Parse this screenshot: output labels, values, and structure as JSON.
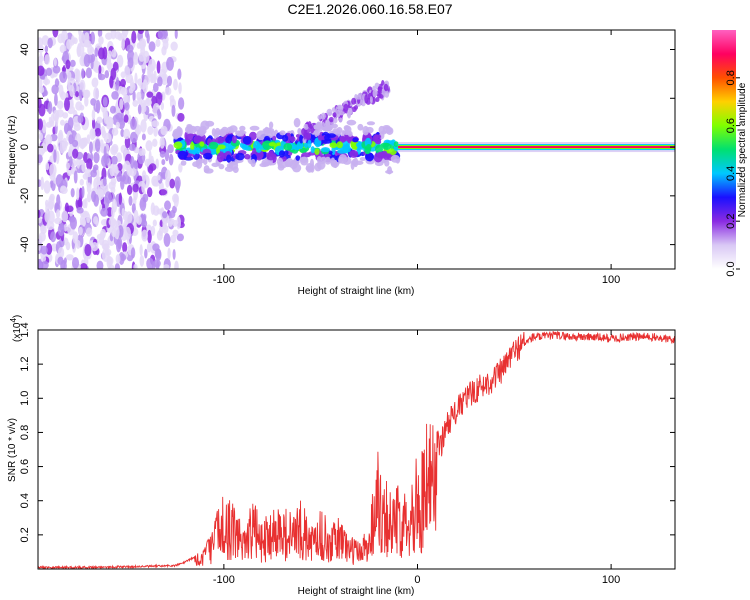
{
  "title": "C2E1.2026.060.16.58.E07",
  "chart_data": [
    {
      "type": "heatmap",
      "xlabel": "Height of straight line (km)",
      "ylabel": "Frequency (Hz)",
      "xlim": [
        -196,
        133
      ],
      "ylim": [
        -50,
        48
      ],
      "xticks": [
        -100,
        0,
        100
      ],
      "xtick_labels": [
        "-100",
        "",
        "100"
      ],
      "yticks": [
        -40,
        -20,
        0,
        20,
        40
      ],
      "ytick_labels": [
        "-40",
        "-20",
        "0",
        "20",
        "40"
      ],
      "colorbar": {
        "label": "Normalized spectral amplitude",
        "range": [
          0,
          1
        ],
        "ticks": [
          0,
          0.2,
          0.4,
          0.6,
          0.8
        ],
        "tick_labels": [
          "0.0",
          "0.2",
          "0.4",
          "0.6",
          "0.8"
        ],
        "colors": [
          "#ffffff",
          "#d9c8f5",
          "#8a2be2",
          "#1a10ff",
          "#00c8ff",
          "#00e070",
          "#80ff00",
          "#ffd000",
          "#ff5000",
          "#ff0060",
          "#ff60c0"
        ]
      },
      "regions": [
        {
          "name": "noise",
          "x_range": [
            -196,
            -122
          ],
          "y_range": [
            -50,
            48
          ],
          "level": 0.3
        },
        {
          "name": "dispersed-band",
          "x_range": [
            -125,
            -10
          ],
          "center_freq": 0,
          "halfwidth": 8,
          "level": 0.55
        },
        {
          "name": "upper-drift",
          "x_range": [
            -60,
            -15
          ],
          "freq_start": 5,
          "freq_end": 25,
          "level": 0.35
        },
        {
          "name": "tone",
          "x_range": [
            -10,
            133
          ],
          "center_freq": 0,
          "level": 1.0
        }
      ]
    },
    {
      "type": "line",
      "xlabel": "Height of straight line (km)",
      "ylabel": "SNR (10 * v/v)",
      "y_scale_label": "(x10",
      "y_scale_exponent": "4",
      "xlim": [
        -196,
        133
      ],
      "ylim": [
        0,
        1.4
      ],
      "xticks": [
        -100,
        0,
        100
      ],
      "xtick_labels": [
        "-100",
        "0",
        "100"
      ],
      "yticks": [
        0.2,
        0.4,
        0.6,
        0.8,
        1.0,
        1.2,
        1.4
      ],
      "ytick_labels": [
        "0.2",
        "0.4",
        "0.6",
        "0.8",
        "1.0",
        "1.2",
        "1.4"
      ],
      "color": "#e83030",
      "series": [
        {
          "name": "SNR",
          "x": [
            -196,
            -170,
            -140,
            -125,
            -120,
            -112,
            -108,
            -100,
            -95,
            -90,
            -85,
            -80,
            -75,
            -70,
            -65,
            -60,
            -55,
            -50,
            -45,
            -40,
            -35,
            -30,
            -25,
            -22,
            -20,
            -18,
            -15,
            -12,
            -10,
            -8,
            -5,
            -2,
            0,
            2,
            5,
            8,
            10,
            12,
            15,
            20,
            25,
            30,
            35,
            40,
            45,
            48,
            50,
            52,
            55,
            60,
            65,
            70,
            80,
            90,
            100,
            110,
            120,
            133
          ],
          "y": [
            0.01,
            0.01,
            0.015,
            0.02,
            0.04,
            0.09,
            0.15,
            0.38,
            0.3,
            0.24,
            0.33,
            0.22,
            0.32,
            0.3,
            0.27,
            0.33,
            0.2,
            0.3,
            0.2,
            0.26,
            0.16,
            0.14,
            0.22,
            0.5,
            0.62,
            0.52,
            0.4,
            0.35,
            0.4,
            0.42,
            0.45,
            0.5,
            0.55,
            0.58,
            0.7,
            0.72,
            0.76,
            0.72,
            0.85,
            0.92,
            1.0,
            1.05,
            1.08,
            1.12,
            1.18,
            1.25,
            1.27,
            1.3,
            1.32,
            1.36,
            1.36,
            1.37,
            1.36,
            1.36,
            1.35,
            1.36,
            1.36,
            1.34
          ]
        }
      ]
    }
  ]
}
